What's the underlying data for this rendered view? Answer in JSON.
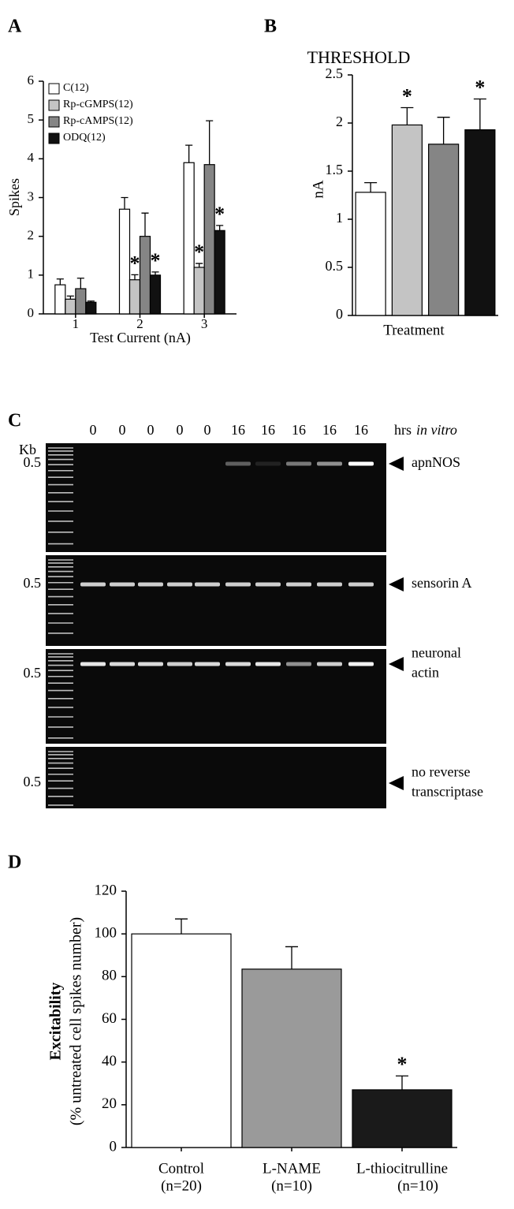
{
  "chart_data": [
    {
      "panel": "A",
      "type": "bar",
      "ylabel": "Spikes",
      "xlabel": "Test Current (nA)",
      "categories": [
        "1",
        "2",
        "3"
      ],
      "ylim": [
        0,
        6
      ],
      "yticks": [
        0,
        1,
        2,
        3,
        4,
        5,
        6
      ],
      "series": [
        {
          "name": "C(12)",
          "color": "#ffffff",
          "values": [
            0.75,
            2.7,
            3.9
          ],
          "errors": [
            0.15,
            0.3,
            0.45
          ]
        },
        {
          "name": "Rp-cGMPS(12)",
          "color": "#c4c4c4",
          "values": [
            0.38,
            0.88,
            1.2
          ],
          "errors": [
            0.08,
            0.13,
            0.1
          ],
          "annotations": [
            null,
            "*",
            "*"
          ]
        },
        {
          "name": "Rp-cAMPS(12)",
          "color": "#858585",
          "values": [
            0.65,
            2.0,
            3.85
          ],
          "errors": [
            0.27,
            0.6,
            1.13
          ]
        },
        {
          "name": "ODQ(12)",
          "color": "#111111",
          "values": [
            0.3,
            1.0,
            2.15
          ],
          "errors": [
            0.03,
            0.08,
            0.13
          ],
          "annotations": [
            null,
            "*",
            "*"
          ]
        }
      ]
    },
    {
      "panel": "B",
      "type": "bar",
      "title": "THRESHOLD",
      "ylabel": "nA",
      "xlabel": "Treatment",
      "categories": [
        null,
        null,
        null,
        null
      ],
      "ylim": [
        0,
        2.5
      ],
      "yticks": [
        0,
        0.5,
        1,
        1.5,
        2,
        2.5
      ],
      "values": [
        1.28,
        1.98,
        1.78,
        1.93
      ],
      "errors": [
        0.1,
        0.18,
        0.28,
        0.32
      ],
      "colors": [
        "#ffffff",
        "#c4c4c4",
        "#858585",
        "#111111"
      ],
      "annotations": [
        null,
        "*",
        null,
        "*"
      ]
    },
    {
      "panel": "D",
      "type": "bar",
      "ylabel": [
        "Excitability",
        "(% untreated cell spikes number)"
      ],
      "categories": [
        "Control",
        "L-NAME",
        "L-thiocitrulline"
      ],
      "category_notes": [
        "(n=20)",
        "(n=10)",
        "(n=10)"
      ],
      "ylim": [
        0,
        120
      ],
      "yticks": [
        0,
        20,
        40,
        60,
        80,
        100,
        120
      ],
      "values": [
        100,
        83.5,
        27
      ],
      "errors": [
        7,
        10.5,
        6.5
      ],
      "colors": [
        "#ffffff",
        "#9a9a9a",
        "#1a1a1a"
      ],
      "annotations": [
        null,
        null,
        "*"
      ]
    }
  ],
  "gel": {
    "panel": "C",
    "lanes": [
      "0",
      "0",
      "0",
      "0",
      "0",
      "16",
      "16",
      "16",
      "16",
      "16"
    ],
    "lane_unit": "hrs",
    "lane_unit_italic": "in vitro",
    "size_unit": "Kb",
    "rows": [
      {
        "size": "0.5",
        "label": [
          "apnNOS"
        ]
      },
      {
        "size": "0.5",
        "label": [
          "sensorin A"
        ]
      },
      {
        "size": "0.5",
        "label": [
          "neuronal",
          "actin"
        ]
      },
      {
        "size": "0.5",
        "label": [
          "no reverse",
          "transcriptase"
        ]
      }
    ]
  }
}
